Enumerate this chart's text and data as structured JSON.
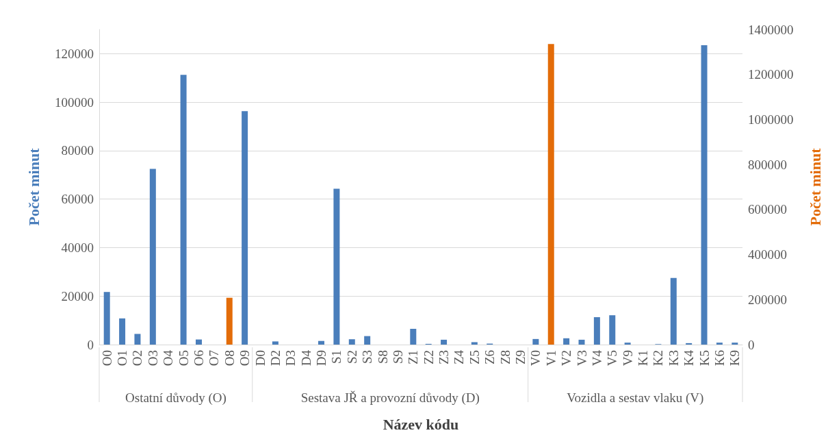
{
  "chart_data": {
    "type": "bar",
    "xlabel": "Název kódu",
    "ylabel": "Počet minut",
    "y2label": "Počet minut",
    "categories": [
      "O0",
      "O1",
      "O2",
      "O3",
      "O4",
      "O5",
      "O6",
      "O7",
      "O8",
      "O9",
      "D0",
      "D2",
      "D3",
      "D4",
      "D9",
      "S1",
      "S2",
      "S3",
      "S8",
      "S9",
      "Z1",
      "Z2",
      "Z3",
      "Z4",
      "Z5",
      "Z6",
      "Z8",
      "Z9",
      "V0",
      "V1",
      "V2",
      "V3",
      "V4",
      "V5",
      "V9",
      "K1",
      "K2",
      "K3",
      "K4",
      "K5",
      "K6",
      "K9"
    ],
    "series": [
      {
        "color": "#4a7ebb",
        "values": [
          21700,
          10800,
          4400,
          72500,
          0,
          111300,
          2100,
          0,
          null,
          96300,
          0,
          1300,
          0,
          0,
          1500,
          64300,
          2200,
          3500,
          0,
          0,
          6500,
          300,
          2000,
          0,
          1000,
          400,
          0,
          0,
          2300,
          null,
          2600,
          2000,
          11300,
          12100,
          800,
          0,
          200,
          27500,
          600,
          123500,
          800,
          800
        ]
      },
      {
        "color": "#e36c09",
        "axis": "y2",
        "values": [
          null,
          null,
          null,
          null,
          null,
          null,
          null,
          null,
          208000,
          null,
          null,
          null,
          null,
          null,
          null,
          null,
          null,
          null,
          null,
          null,
          null,
          null,
          null,
          null,
          null,
          null,
          null,
          null,
          null,
          1335000,
          null,
          null,
          null,
          null,
          null,
          null,
          null,
          null,
          null,
          null,
          null,
          null
        ]
      }
    ],
    "ylim": [
      0,
      130000
    ],
    "yticks": [
      0,
      20000,
      40000,
      60000,
      80000,
      100000,
      120000
    ],
    "y2lim": [
      0,
      1400000
    ],
    "y2ticks": [
      0,
      200000,
      400000,
      600000,
      800000,
      1000000,
      1200000,
      1400000
    ],
    "grid": "y",
    "annotations": [
      "Ostatní důvody (O)",
      "Sestava JŘ a provozní důvody (D)",
      "Vozidla a sestav vlaku (V)"
    ]
  }
}
